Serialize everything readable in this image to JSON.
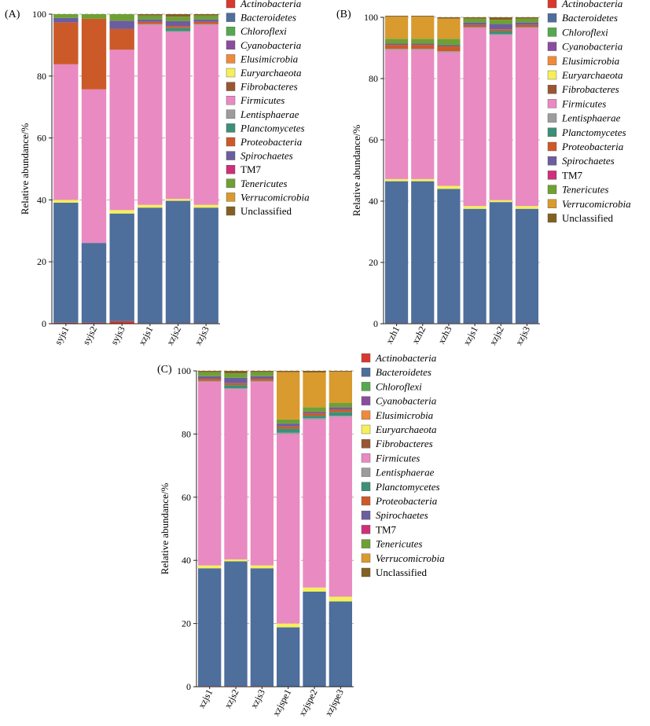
{
  "legend_style": {
    "Actinobacteria": "italic",
    "Bacteroidetes": "italic",
    "Chloroflexi": "italic",
    "Cyanobacteria": "italic",
    "Elusimicrobia": "italic",
    "Euryarchaeota": "italic",
    "Fibrobacteres": "italic",
    "Firmicutes": "italic",
    "Lentisphaerae": "italic",
    "Planctomycetes": "italic",
    "Proteobacteria": "italic",
    "Spirochaetes": "italic",
    "TM7": "normal",
    "Tenericutes": "italic",
    "Verrucomicrobia": "italic",
    "Unclassified": "normal"
  },
  "chart_data": [
    {
      "type": "bar",
      "stacked": true,
      "panel_label": "(A)",
      "ylabel": "Relative abundance/%",
      "xlabel": "",
      "ylim": [
        0,
        100
      ],
      "yticks": [
        0,
        20,
        40,
        60,
        80,
        100
      ],
      "grid": "dashed horizontal",
      "legend_position": "right",
      "categories": [
        "syjs1",
        "syjs2",
        "syjs3",
        "xzjs1",
        "xzjs2",
        "xzjs3"
      ],
      "series": [
        {
          "name": "Actinobacteria",
          "color": "#d9382e",
          "values": [
            0.3,
            0.3,
            0.8,
            0.2,
            0.2,
            0.2
          ]
        },
        {
          "name": "Bacteroidetes",
          "color": "#4e6e9c",
          "values": [
            38.8,
            25.8,
            34.8,
            37.3,
            39.5,
            37.3
          ]
        },
        {
          "name": "Chloroflexi",
          "color": "#55a84f",
          "values": [
            0,
            0,
            0,
            0,
            0,
            0
          ]
        },
        {
          "name": "Cyanobacteria",
          "color": "#8a4c9e",
          "values": [
            0,
            0,
            0,
            0,
            0,
            0
          ]
        },
        {
          "name": "Elusimicrobia",
          "color": "#f08a3a",
          "values": [
            0,
            0,
            0,
            0,
            0,
            0
          ]
        },
        {
          "name": "Euryarchaeota",
          "color": "#f5ef5a",
          "values": [
            0.9,
            0,
            1.1,
            0.9,
            0.6,
            0.9
          ]
        },
        {
          "name": "Fibrobacteres",
          "color": "#9a5532",
          "values": [
            0,
            0,
            0,
            0,
            0,
            0
          ]
        },
        {
          "name": "Firmicutes",
          "color": "#e98ac2",
          "values": [
            43.8,
            49.6,
            51.8,
            58.1,
            53.9,
            58.1
          ]
        },
        {
          "name": "Lentisphaerae",
          "color": "#9c9c9c",
          "values": [
            0,
            0,
            0,
            0.3,
            0.3,
            0.3
          ]
        },
        {
          "name": "Planctomycetes",
          "color": "#3d8f78",
          "values": [
            0,
            0,
            0,
            0,
            1.0,
            0
          ]
        },
        {
          "name": "Proteobacteria",
          "color": "#cc5a28",
          "values": [
            13.5,
            22.8,
            6.7,
            0.7,
            0.6,
            0.7
          ]
        },
        {
          "name": "Spirochaetes",
          "color": "#6c5d9f",
          "values": [
            1.5,
            0,
            2.7,
            0.8,
            1.7,
            0.8
          ]
        },
        {
          "name": "TM7",
          "color": "#cf2f79",
          "values": [
            0,
            0,
            0,
            0,
            0,
            0
          ]
        },
        {
          "name": "Tenericutes",
          "color": "#6fa034",
          "values": [
            1.2,
            1.5,
            2.1,
            1.3,
            1.4,
            1.3
          ]
        },
        {
          "name": "Verrucomicrobia",
          "color": "#d99a2e",
          "values": [
            0,
            0,
            0,
            0,
            0,
            0
          ]
        },
        {
          "name": "Unclassified",
          "color": "#836022",
          "values": [
            0,
            0,
            0,
            0.4,
            0.8,
            0.4
          ]
        }
      ]
    },
    {
      "type": "bar",
      "stacked": true,
      "panel_label": "(B)",
      "ylabel": "Relative abundance/%",
      "xlabel": "",
      "ylim": [
        0,
        100
      ],
      "yticks": [
        0,
        20,
        40,
        60,
        80,
        100
      ],
      "grid": "dashed horizontal",
      "legend_position": "right",
      "categories": [
        "xzh1",
        "xzh2",
        "xzh3",
        "xzjs1",
        "xzjs2",
        "xzjs3"
      ],
      "series": [
        {
          "name": "Actinobacteria",
          "color": "#d9382e",
          "values": [
            0.2,
            0.2,
            0.2,
            0.2,
            0.2,
            0.2
          ]
        },
        {
          "name": "Bacteroidetes",
          "color": "#4e6e9c",
          "values": [
            46.3,
            46.3,
            43.8,
            37.3,
            39.5,
            37.3
          ]
        },
        {
          "name": "Chloroflexi",
          "color": "#55a84f",
          "values": [
            0,
            0,
            0,
            0,
            0,
            0
          ]
        },
        {
          "name": "Cyanobacteria",
          "color": "#8a4c9e",
          "values": [
            0,
            0,
            0,
            0,
            0,
            0
          ]
        },
        {
          "name": "Elusimicrobia",
          "color": "#f08a3a",
          "values": [
            0,
            0,
            0,
            0,
            0,
            0
          ]
        },
        {
          "name": "Euryarchaeota",
          "color": "#f5ef5a",
          "values": [
            0.7,
            0.7,
            1.0,
            0.9,
            0.6,
            0.9
          ]
        },
        {
          "name": "Fibrobacteres",
          "color": "#9a5532",
          "values": [
            0,
            0,
            0,
            0,
            0,
            0
          ]
        },
        {
          "name": "Firmicutes",
          "color": "#e98ac2",
          "values": [
            42.1,
            42.1,
            43.5,
            58.1,
            53.9,
            58.1
          ]
        },
        {
          "name": "Lentisphaerae",
          "color": "#9c9c9c",
          "values": [
            0.4,
            0.4,
            0.4,
            0.3,
            0.3,
            0.3
          ]
        },
        {
          "name": "Planctomycetes",
          "color": "#3d8f78",
          "values": [
            0,
            0,
            0,
            0,
            1.0,
            0
          ]
        },
        {
          "name": "Proteobacteria",
          "color": "#cc5a28",
          "values": [
            1.3,
            1.3,
            1.6,
            0.7,
            0.6,
            0.7
          ]
        },
        {
          "name": "Spirochaetes",
          "color": "#6c5d9f",
          "values": [
            0.4,
            0.4,
            0.4,
            0.8,
            1.7,
            0.8
          ]
        },
        {
          "name": "TM7",
          "color": "#cf2f79",
          "values": [
            0,
            0,
            0,
            0,
            0,
            0
          ]
        },
        {
          "name": "Tenericutes",
          "color": "#6fa034",
          "values": [
            1.6,
            1.6,
            2.1,
            1.3,
            1.4,
            1.3
          ]
        },
        {
          "name": "Verrucomicrobia",
          "color": "#d99a2e",
          "values": [
            7.2,
            7.2,
            6.6,
            0,
            0,
            0
          ]
        },
        {
          "name": "Unclassified",
          "color": "#836022",
          "values": [
            0.3,
            0.3,
            0.4,
            0.4,
            0.8,
            0.4
          ]
        }
      ]
    },
    {
      "type": "bar",
      "stacked": true,
      "panel_label": "(C)",
      "ylabel": "Relative abundance/%",
      "xlabel": "",
      "ylim": [
        0,
        100
      ],
      "yticks": [
        0,
        20,
        40,
        60,
        80,
        100
      ],
      "grid": "dashed horizontal",
      "legend_position": "right",
      "categories": [
        "xzjs1",
        "xzjs2",
        "xzjs3",
        "xzjspe1",
        "xzjspe2",
        "xzjspe3"
      ],
      "series": [
        {
          "name": "Actinobacteria",
          "color": "#d9382e",
          "values": [
            0.2,
            0.2,
            0.2,
            0.1,
            0.1,
            0.1
          ]
        },
        {
          "name": "Bacteroidetes",
          "color": "#4e6e9c",
          "values": [
            37.3,
            39.5,
            37.3,
            18.7,
            30.0,
            26.9
          ]
        },
        {
          "name": "Chloroflexi",
          "color": "#55a84f",
          "values": [
            0,
            0,
            0,
            0,
            0,
            0
          ]
        },
        {
          "name": "Cyanobacteria",
          "color": "#8a4c9e",
          "values": [
            0,
            0,
            0,
            0,
            0,
            0
          ]
        },
        {
          "name": "Elusimicrobia",
          "color": "#f08a3a",
          "values": [
            0,
            0,
            0,
            0,
            0,
            0
          ]
        },
        {
          "name": "Euryarchaeota",
          "color": "#f5ef5a",
          "values": [
            0.9,
            0.6,
            0.9,
            1.2,
            1.3,
            1.5
          ]
        },
        {
          "name": "Fibrobacteres",
          "color": "#9a5532",
          "values": [
            0,
            0,
            0,
            0,
            0,
            0
          ]
        },
        {
          "name": "Firmicutes",
          "color": "#e98ac2",
          "values": [
            58.1,
            53.9,
            58.1,
            60.0,
            53.2,
            56.9
          ]
        },
        {
          "name": "Lentisphaerae",
          "color": "#9c9c9c",
          "values": [
            0.3,
            0.3,
            0.3,
            0.4,
            0.4,
            0.4
          ]
        },
        {
          "name": "Planctomycetes",
          "color": "#3d8f78",
          "values": [
            0,
            1.0,
            0,
            1.3,
            0.8,
            1.2
          ]
        },
        {
          "name": "Proteobacteria",
          "color": "#cc5a28",
          "values": [
            0.7,
            0.6,
            0.7,
            0.7,
            0.8,
            0.8
          ]
        },
        {
          "name": "Spirochaetes",
          "color": "#6c5d9f",
          "values": [
            0.8,
            1.7,
            0.8,
            0.9,
            0.5,
            0.7
          ]
        },
        {
          "name": "TM7",
          "color": "#cf2f79",
          "values": [
            0,
            0,
            0,
            0,
            0,
            0
          ]
        },
        {
          "name": "Tenericutes",
          "color": "#6fa034",
          "values": [
            1.3,
            1.4,
            1.3,
            1.3,
            1.4,
            1.4
          ]
        },
        {
          "name": "Verrucomicrobia",
          "color": "#d99a2e",
          "values": [
            0,
            0,
            0,
            15.0,
            11.0,
            9.8
          ]
        },
        {
          "name": "Unclassified",
          "color": "#836022",
          "values": [
            0.4,
            0.8,
            0.4,
            0.4,
            0.5,
            0.3
          ]
        }
      ]
    }
  ]
}
